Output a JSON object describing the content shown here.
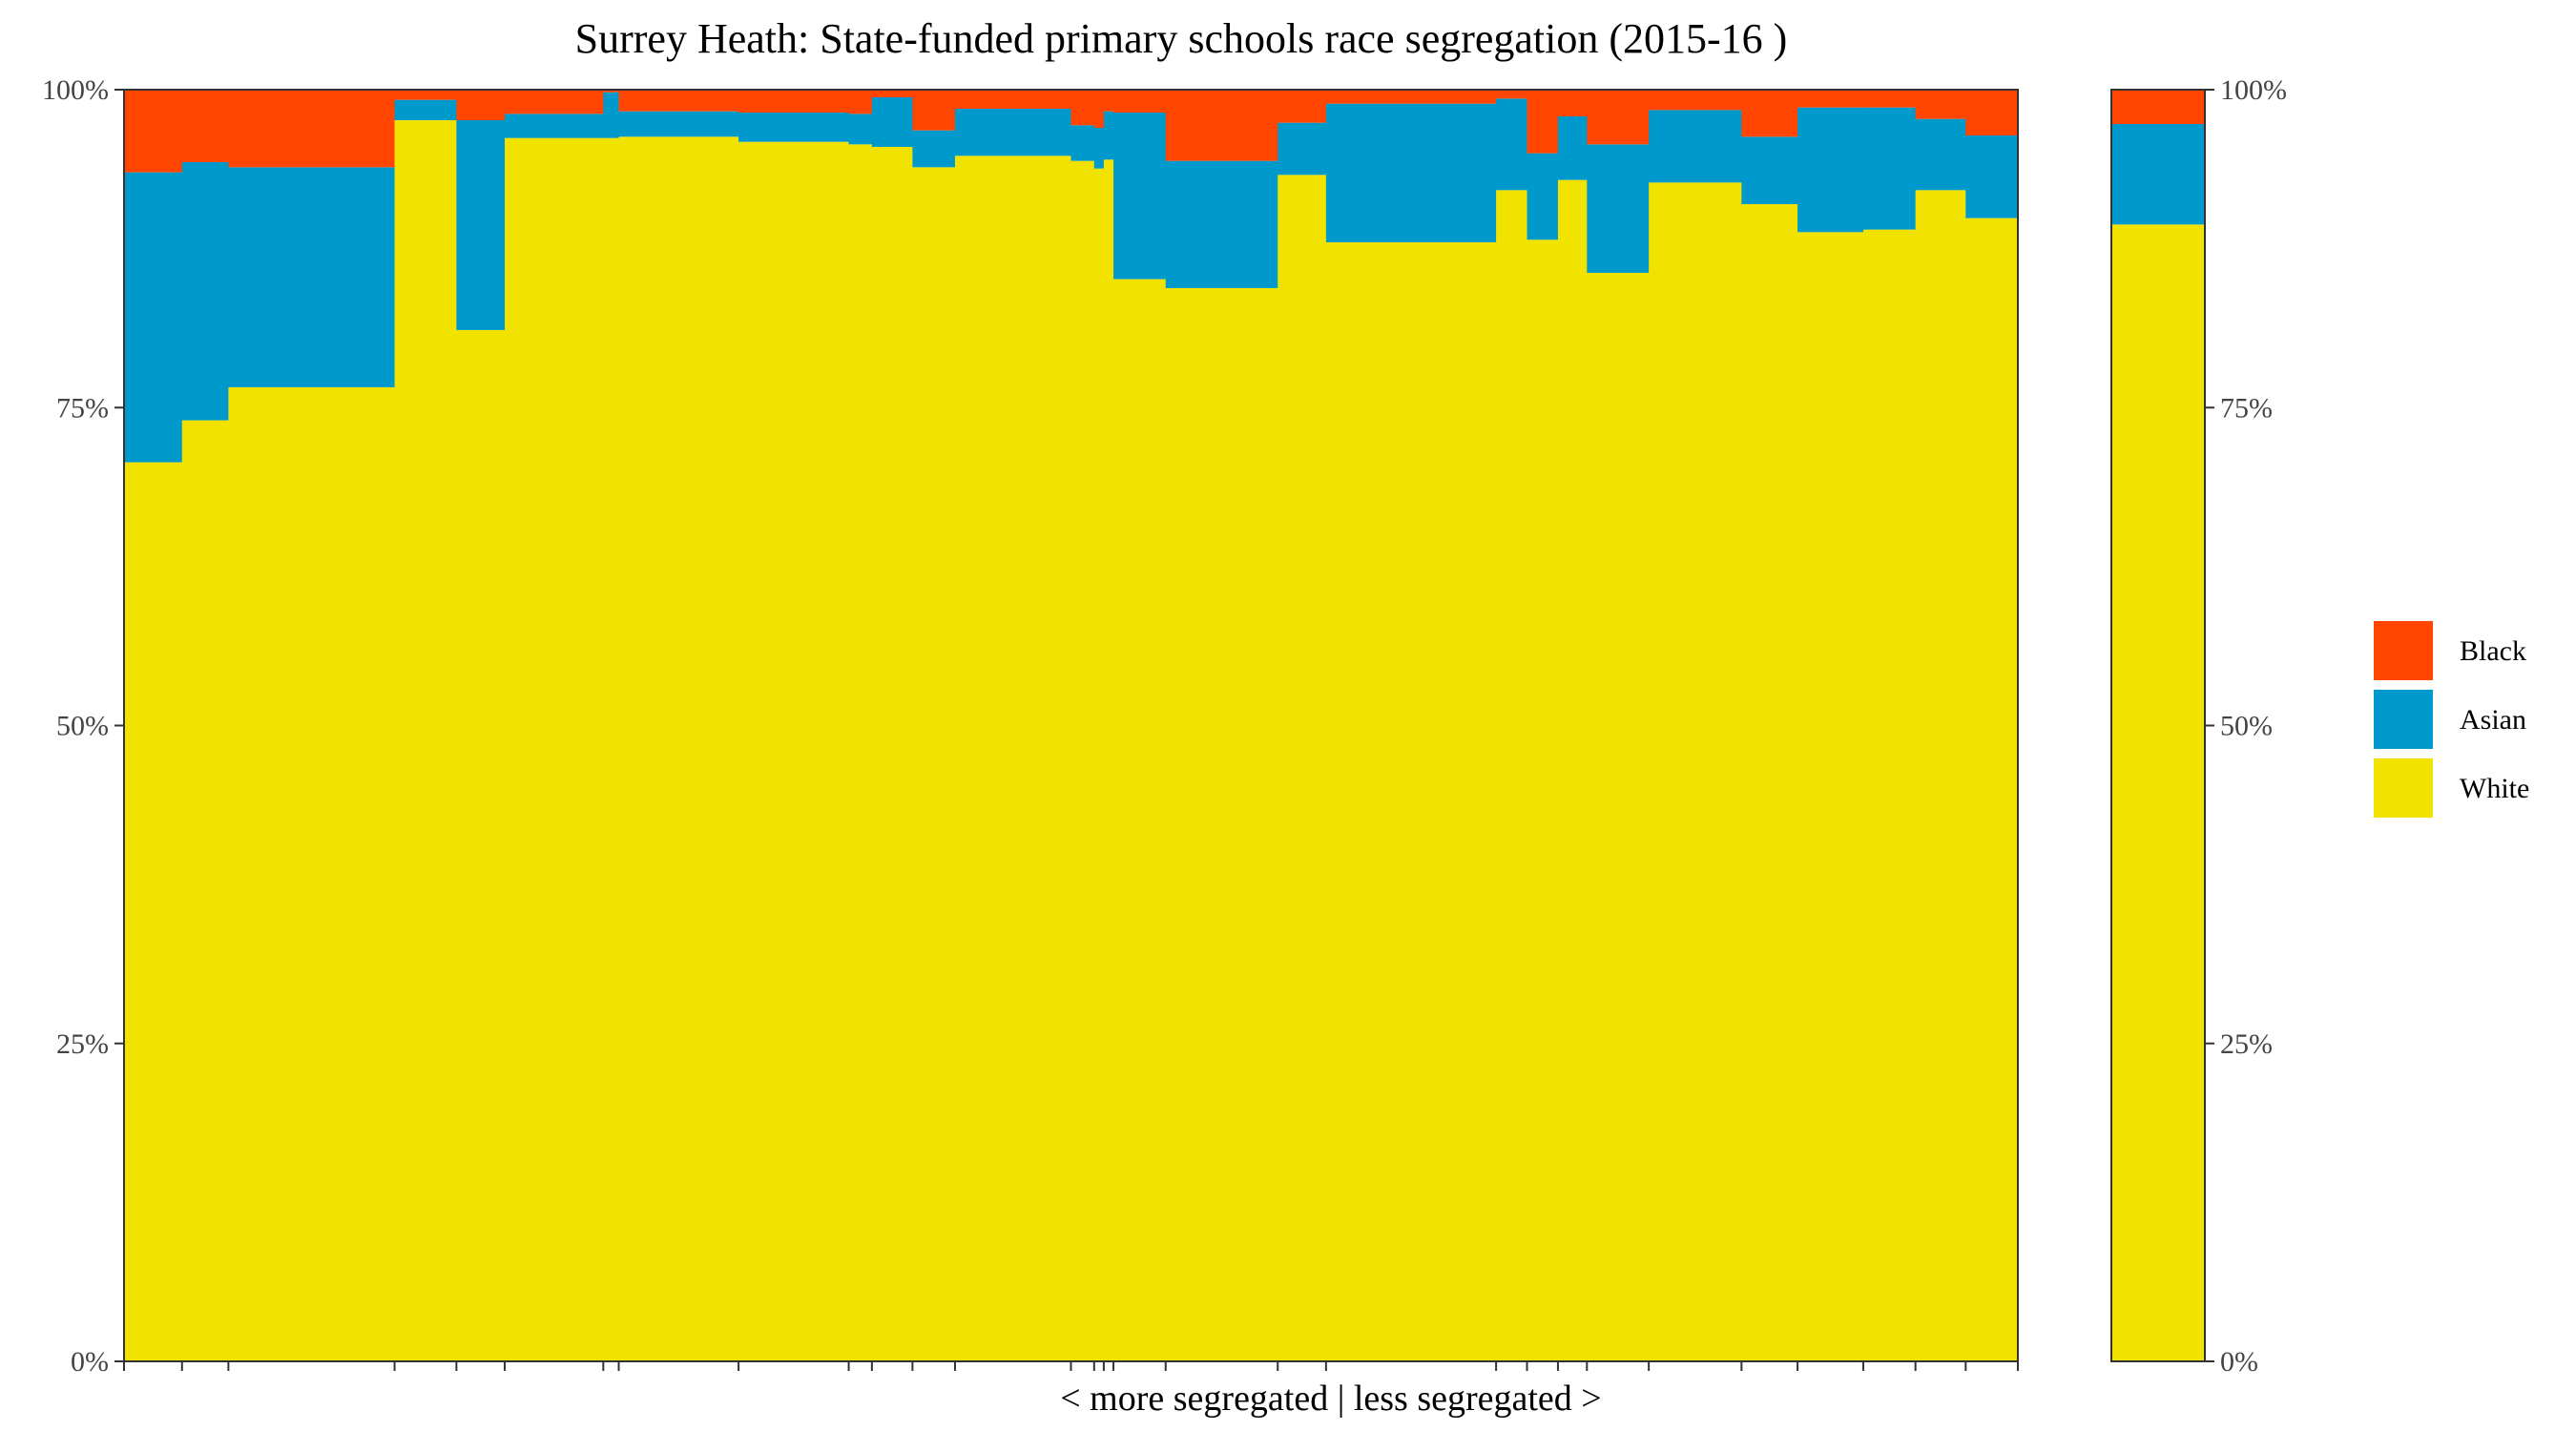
{
  "chart_data": {
    "type": "stacked-bar",
    "title": "Surrey Heath: State-funded primary schools race segregation (2015-16 )",
    "xlabel": "< more segregated | less segregated >",
    "ylabel": "",
    "ylim": [
      0,
      100
    ],
    "y_ticks": [
      "0%",
      "25%",
      "50%",
      "75%",
      "100%"
    ],
    "legend_placement": "right",
    "grid": false,
    "series_order_bottom_to_top": [
      "White",
      "Asian",
      "Black"
    ],
    "colors": {
      "Black": "#FF4500",
      "Asian": "#0099CC",
      "White": "#F2E200"
    },
    "legend": [
      {
        "name": "Black",
        "color": "#FF4500"
      },
      {
        "name": "Asian",
        "color": "#0099CC"
      },
      {
        "name": "White",
        "color": "#F2E200"
      }
    ],
    "schools": [
      {
        "share": 3.0,
        "white": 70.7,
        "asian": 22.8,
        "black": 6.5
      },
      {
        "share": 2.4,
        "white": 74.0,
        "asian": 20.3,
        "black": 5.7
      },
      {
        "share": 8.6,
        "white": 76.6,
        "asian": 17.3,
        "black": 6.1
      },
      {
        "share": 3.2,
        "white": 97.6,
        "asian": 1.6,
        "black": 0.8
      },
      {
        "share": 2.5,
        "white": 81.1,
        "asian": 16.5,
        "black": 2.4
      },
      {
        "share": 5.1,
        "white": 96.2,
        "asian": 1.9,
        "black": 1.9
      },
      {
        "share": 0.8,
        "white": 96.2,
        "asian": 3.6,
        "black": 0.2
      },
      {
        "share": 6.2,
        "white": 96.3,
        "asian": 2.0,
        "black": 1.7
      },
      {
        "share": 5.7,
        "white": 95.9,
        "asian": 2.3,
        "black": 1.8
      },
      {
        "share": 1.2,
        "white": 95.7,
        "asian": 2.4,
        "black": 1.9
      },
      {
        "share": 2.1,
        "white": 95.5,
        "asian": 3.9,
        "black": 0.6
      },
      {
        "share": 2.2,
        "white": 93.9,
        "asian": 2.9,
        "black": 3.2
      },
      {
        "share": 6.0,
        "white": 94.8,
        "asian": 3.7,
        "black": 1.5
      },
      {
        "share": 1.2,
        "white": 94.4,
        "asian": 2.8,
        "black": 2.8
      },
      {
        "share": 0.5,
        "white": 93.8,
        "asian": 3.2,
        "black": 3.0
      },
      {
        "share": 0.5,
        "white": 94.5,
        "asian": 3.8,
        "black": 1.7
      },
      {
        "share": 2.7,
        "white": 85.1,
        "asian": 13.1,
        "black": 1.8
      },
      {
        "share": 5.8,
        "white": 84.4,
        "asian": 10.0,
        "black": 5.6
      },
      {
        "share": 2.5,
        "white": 93.3,
        "asian": 4.1,
        "black": 2.6
      },
      {
        "share": 8.8,
        "white": 88.0,
        "asian": 10.9,
        "black": 1.1
      },
      {
        "share": 1.6,
        "white": 92.1,
        "asian": 7.2,
        "black": 0.7
      },
      {
        "share": 1.6,
        "white": 88.2,
        "asian": 6.8,
        "black": 5.0
      },
      {
        "share": 1.5,
        "white": 92.9,
        "asian": 5.0,
        "black": 2.1
      },
      {
        "share": 3.2,
        "white": 85.6,
        "asian": 10.1,
        "black": 4.3
      },
      {
        "share": 4.8,
        "white": 92.7,
        "asian": 5.7,
        "black": 1.6
      },
      {
        "share": 2.9,
        "white": 91.0,
        "asian": 5.3,
        "black": 3.7
      },
      {
        "share": 3.4,
        "white": 88.8,
        "asian": 9.8,
        "black": 1.4
      },
      {
        "share": 2.7,
        "white": 89.0,
        "asian": 9.6,
        "black": 1.4
      },
      {
        "share": 2.6,
        "white": 92.1,
        "asian": 5.6,
        "black": 2.3
      },
      {
        "share": 2.7,
        "white": 89.9,
        "asian": 6.5,
        "black": 3.6
      }
    ],
    "district_summary": {
      "white": 89.4,
      "asian": 7.9,
      "black": 2.7
    }
  }
}
